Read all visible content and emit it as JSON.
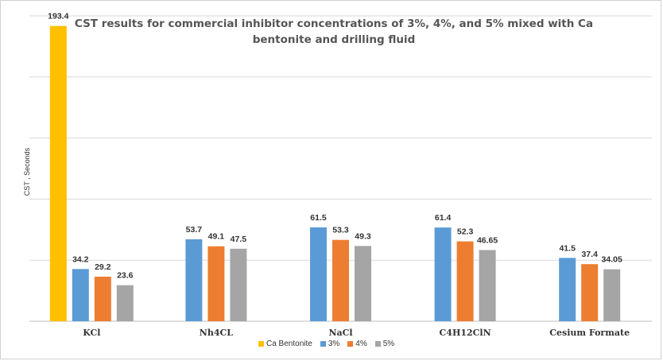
{
  "chart_data": {
    "type": "bar",
    "title": "CST results for commercial  inhibitor concentrations of 3%, 4%, and 5% mixed with Ca bentonite  and drilling fluid",
    "xlabel": "",
    "ylabel": "CST , Seconds",
    "ylim": [
      0,
      200
    ],
    "grid": true,
    "legend_position": "bottom",
    "categories": [
      "KCl",
      "Nh4CL",
      "NaCl",
      "C4H12ClN",
      "Cesium Formate"
    ],
    "series": [
      {
        "name": "Ca Bentonite",
        "color": "#FFC000",
        "values": [
          193.4,
          null,
          null,
          null,
          null
        ],
        "labels": [
          "193.4",
          null,
          null,
          null,
          null
        ]
      },
      {
        "name": "3%",
        "color": "#5B9BD5",
        "values": [
          34.2,
          53.7,
          61.5,
          61.4,
          41.5
        ],
        "labels": [
          "34.2",
          "53.7",
          "61.5",
          "61.4",
          "41.5"
        ]
      },
      {
        "name": "4%",
        "color": "#ED7D31",
        "values": [
          29.2,
          49.1,
          53.3,
          52.3,
          37.4
        ],
        "labels": [
          "29.2",
          "49.1",
          "53.3",
          "52.3",
          "37.4"
        ]
      },
      {
        "name": "5%",
        "color": "#A5A5A5",
        "values": [
          23.6,
          47.5,
          49.3,
          46.65,
          34.05
        ],
        "labels": [
          "23.6",
          "47.5",
          "49.3",
          "46.65",
          "34.05"
        ]
      }
    ]
  }
}
